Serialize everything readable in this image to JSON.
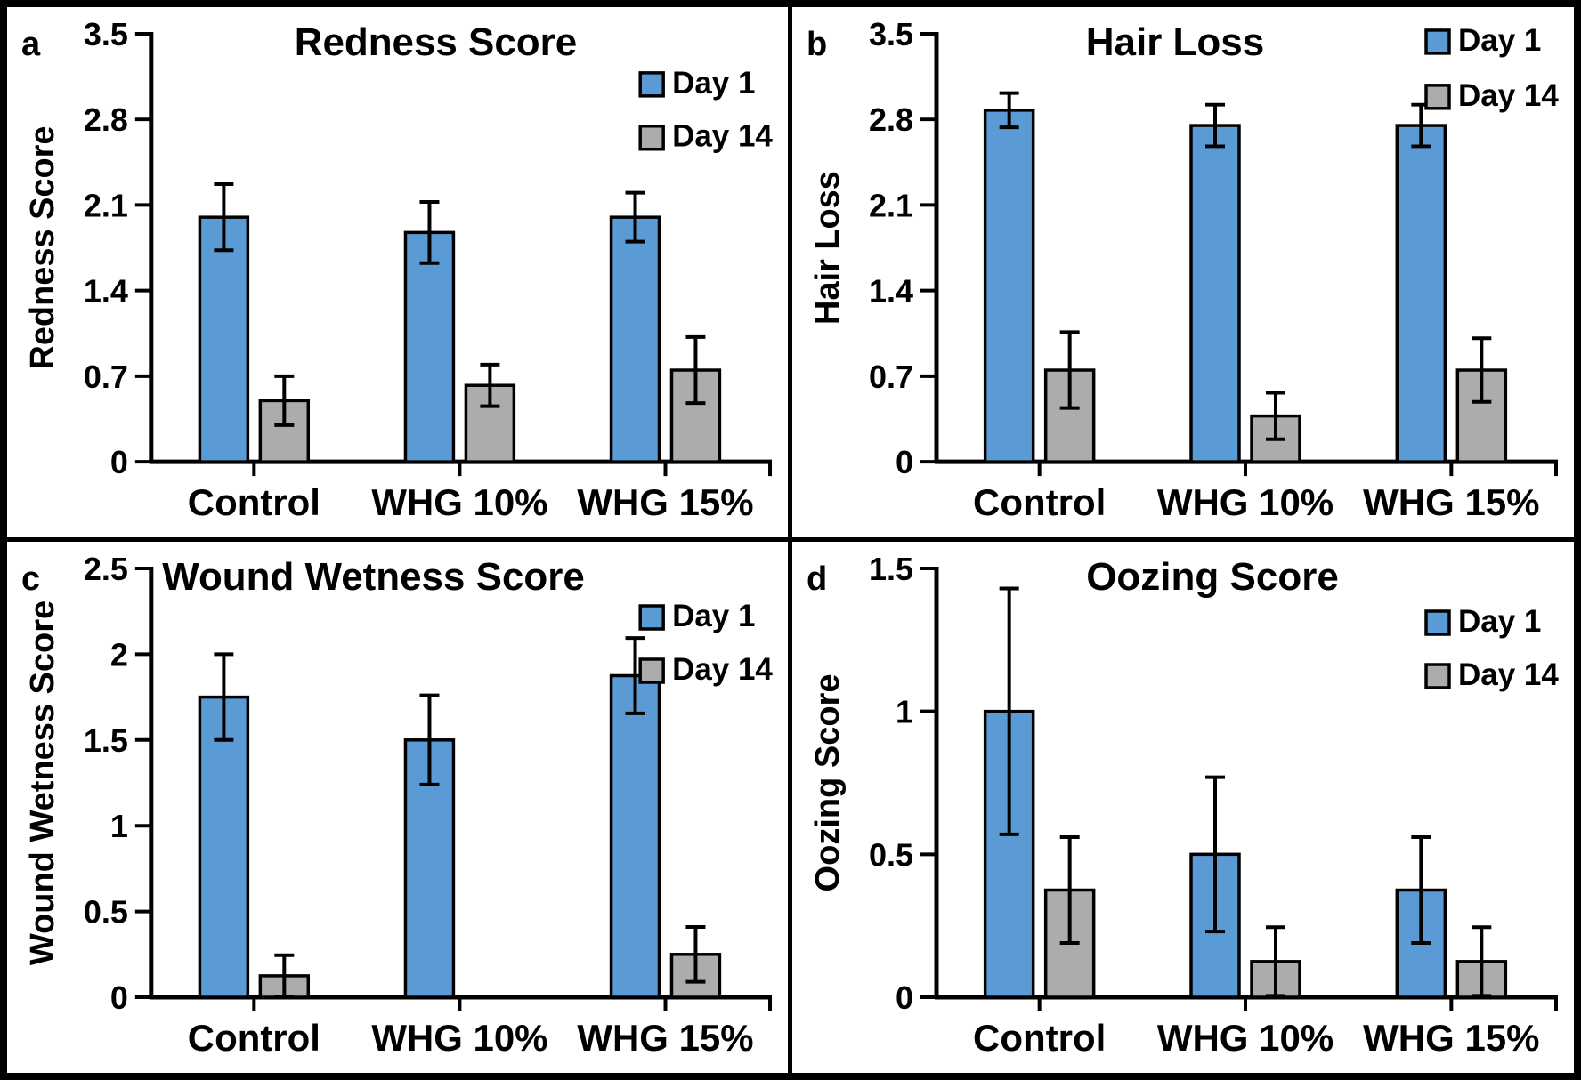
{
  "figure": {
    "background": "#ffffff",
    "border_color": "#000000",
    "day1_color": "#5B9BD5",
    "day14_color": "#ACACAC",
    "axis_color": "#000000",
    "legend_labels": [
      "Day 1",
      "Day 14"
    ]
  },
  "chart_data": [
    {
      "type": "bar",
      "panel_label": "a",
      "title": "Redness Score",
      "ylabel": "Redness Score",
      "xlabel": "",
      "ylim": [
        0,
        3.5
      ],
      "yticks": [
        0,
        0.7,
        1.4,
        2.1,
        2.8,
        3.5
      ],
      "ytick_labels": [
        "0",
        "0.7",
        "1.4",
        "2.1",
        "2.8",
        "3.5"
      ],
      "categories": [
        "Control",
        "WHG 10%",
        "WHG 15%"
      ],
      "grid": false,
      "legend_position": "inside-top-right",
      "series": [
        {
          "name": "Day 1",
          "color": "#5B9BD5",
          "values": [
            2.0,
            1.875,
            2.0
          ],
          "errors": [
            0.27,
            0.25,
            0.2
          ]
        },
        {
          "name": "Day 14",
          "color": "#ACACAC",
          "values": [
            0.5,
            0.625,
            0.75
          ],
          "errors": [
            0.2,
            0.17,
            0.27
          ]
        }
      ]
    },
    {
      "type": "bar",
      "panel_label": "b",
      "title": "Hair Loss",
      "ylabel": "Hair Loss",
      "xlabel": "",
      "ylim": [
        0,
        3.5
      ],
      "yticks": [
        0,
        0.7,
        1.4,
        2.1,
        2.8,
        3.5
      ],
      "ytick_labels": [
        "0",
        "0.7",
        "1.4",
        "2.1",
        "2.8",
        "3.5"
      ],
      "categories": [
        "Control",
        "WHG 10%",
        "WHG 15%"
      ],
      "grid": false,
      "legend_position": "inside-top-right",
      "series": [
        {
          "name": "Day 1",
          "color": "#5B9BD5",
          "values": [
            2.875,
            2.75,
            2.75
          ],
          "errors": [
            0.14,
            0.17,
            0.17
          ]
        },
        {
          "name": "Day 14",
          "color": "#ACACAC",
          "values": [
            0.75,
            0.375,
            0.75
          ],
          "errors": [
            0.31,
            0.19,
            0.26
          ]
        }
      ]
    },
    {
      "type": "bar",
      "panel_label": "c",
      "title": "Wound Wetness Score",
      "ylabel": "Wound Wetness Score",
      "xlabel": "",
      "ylim": [
        0,
        2.5
      ],
      "yticks": [
        0,
        0.5,
        1,
        1.5,
        2,
        2.5
      ],
      "ytick_labels": [
        "0",
        "0.5",
        "1",
        "1.5",
        "2",
        "2.5"
      ],
      "categories": [
        "Control",
        "WHG 10%",
        "WHG 15%"
      ],
      "grid": false,
      "legend_position": "inside-top-right",
      "series": [
        {
          "name": "Day 1",
          "color": "#5B9BD5",
          "values": [
            1.75,
            1.5,
            1.875
          ],
          "errors": [
            0.25,
            0.26,
            0.22
          ]
        },
        {
          "name": "Day 14",
          "color": "#ACACAC",
          "values": [
            0.125,
            0,
            0.25
          ],
          "errors": [
            0.12,
            0,
            0.16
          ]
        }
      ]
    },
    {
      "type": "bar",
      "panel_label": "d",
      "title": "Oozing Score",
      "ylabel": "Oozing Score",
      "xlabel": "",
      "ylim": [
        0,
        1.5
      ],
      "yticks": [
        0,
        0.5,
        1,
        1.5
      ],
      "ytick_labels": [
        "0",
        "0.5",
        "1",
        "1.5"
      ],
      "categories": [
        "Control",
        "WHG 10%",
        "WHG 15%"
      ],
      "grid": false,
      "legend_position": "inside-top-right",
      "series": [
        {
          "name": "Day 1",
          "color": "#5B9BD5",
          "values": [
            1.0,
            0.5,
            0.375
          ],
          "errors": [
            0.43,
            0.27,
            0.185
          ]
        },
        {
          "name": "Day 14",
          "color": "#ACACAC",
          "values": [
            0.375,
            0.125,
            0.125
          ],
          "errors": [
            0.185,
            0.12,
            0.12
          ]
        }
      ]
    }
  ]
}
